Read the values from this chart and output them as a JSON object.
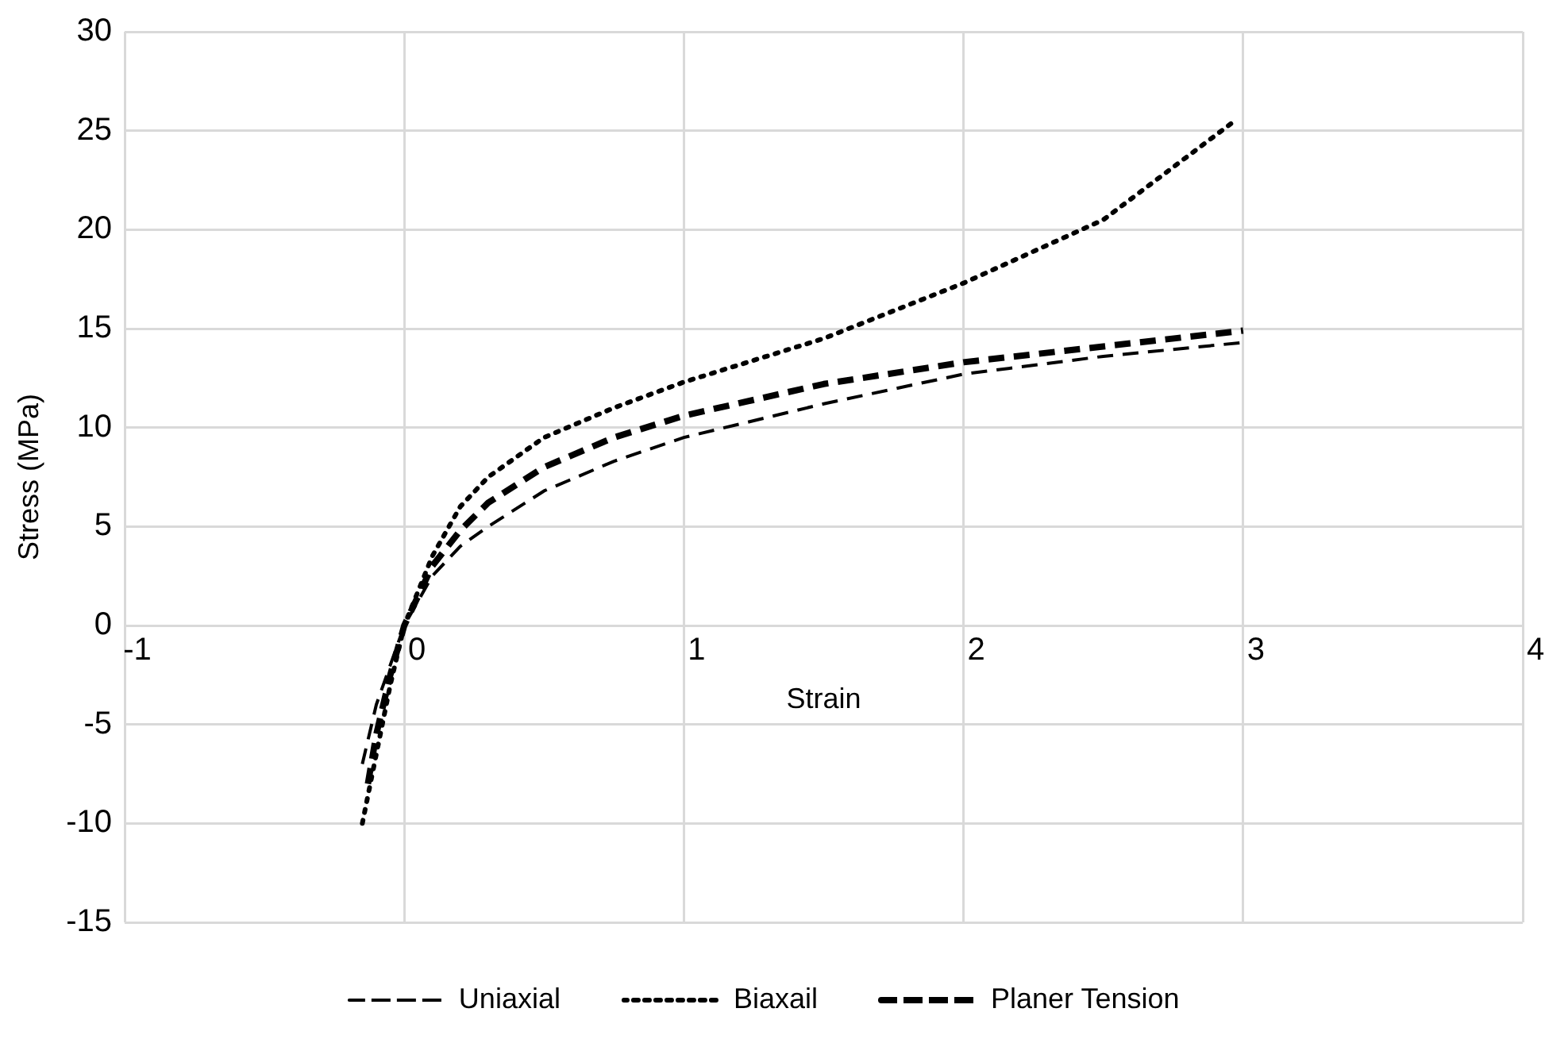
{
  "chart_data": {
    "type": "line",
    "xlabel": "Strain",
    "ylabel": "Stress (MPa)",
    "xlim": [
      -1,
      4
    ],
    "xticks": [
      -1,
      0,
      1,
      2,
      3,
      4
    ],
    "ylim": [
      -15,
      30
    ],
    "yticks": [
      -15,
      -10,
      -5,
      0,
      5,
      10,
      15,
      20,
      25,
      30
    ],
    "grid": true,
    "legend": "bottom",
    "marker": "none",
    "series": [
      {
        "name": "Uniaxial",
        "color": "#000000",
        "line_style": "dashed",
        "x": [
          -0.15,
          -0.1,
          -0.05,
          0,
          0.1,
          0.2,
          0.3,
          0.5,
          0.75,
          1,
          1.5,
          2,
          2.5,
          3
        ],
        "values": [
          -7,
          -4,
          -2,
          0,
          2.5,
          4,
          5,
          6.8,
          8.3,
          9.5,
          11.2,
          12.7,
          13.6,
          14.3
        ]
      },
      {
        "name": "Biaxail",
        "color": "#000000",
        "line_style": "dotted",
        "x": [
          -0.15,
          -0.1,
          -0.05,
          0,
          0.1,
          0.2,
          0.3,
          0.5,
          0.75,
          1,
          1.5,
          2,
          2.5,
          2.97
        ],
        "values": [
          -10,
          -6.5,
          -3,
          0,
          3.5,
          6,
          7.5,
          9.5,
          11,
          12.3,
          14.5,
          17.3,
          20.5,
          25.5
        ]
      },
      {
        "name": "Planer Tension",
        "color": "#000000",
        "line_style": "dashed",
        "x": [
          -0.13,
          -0.1,
          -0.05,
          0,
          0.1,
          0.2,
          0.3,
          0.5,
          0.75,
          1,
          1.5,
          2,
          2.5,
          3
        ],
        "values": [
          -8,
          -5.5,
          -2.5,
          0,
          3,
          4.8,
          6.2,
          8,
          9.5,
          10.6,
          12.2,
          13.3,
          14.1,
          14.9
        ]
      }
    ]
  }
}
